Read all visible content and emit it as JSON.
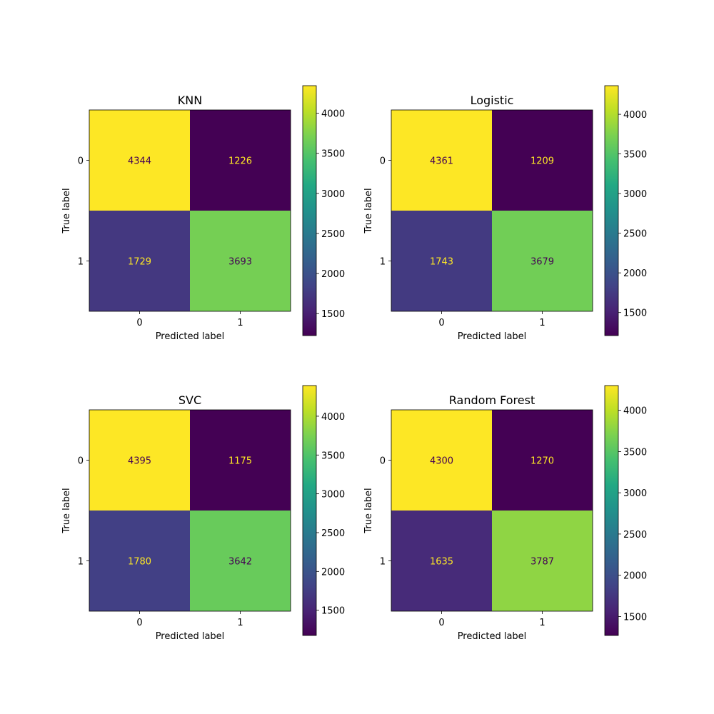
{
  "chart_data": [
    {
      "type": "heatmap",
      "title": "KNN",
      "xlabel": "Predicted label",
      "ylabel": "True label",
      "x_categories": [
        "0",
        "1"
      ],
      "y_categories": [
        "0",
        "1"
      ],
      "matrix": [
        [
          4344,
          1226
        ],
        [
          1729,
          3693
        ]
      ],
      "colormap": "viridis",
      "colorbar": {
        "range": [
          1226,
          4344
        ],
        "ticks": [
          1500,
          2000,
          2500,
          3000,
          3500,
          4000
        ]
      }
    },
    {
      "type": "heatmap",
      "title": "Logistic",
      "xlabel": "Predicted label",
      "ylabel": "True label",
      "x_categories": [
        "0",
        "1"
      ],
      "y_categories": [
        "0",
        "1"
      ],
      "matrix": [
        [
          4361,
          1209
        ],
        [
          1743,
          3679
        ]
      ],
      "colormap": "viridis",
      "colorbar": {
        "range": [
          1209,
          4361
        ],
        "ticks": [
          1500,
          2000,
          2500,
          3000,
          3500,
          4000
        ]
      }
    },
    {
      "type": "heatmap",
      "title": "SVC",
      "xlabel": "Predicted label",
      "ylabel": "True label",
      "x_categories": [
        "0",
        "1"
      ],
      "y_categories": [
        "0",
        "1"
      ],
      "matrix": [
        [
          4395,
          1175
        ],
        [
          1780,
          3642
        ]
      ],
      "colormap": "viridis",
      "colorbar": {
        "range": [
          1175,
          4395
        ],
        "ticks": [
          1500,
          2000,
          2500,
          3000,
          3500,
          4000
        ]
      }
    },
    {
      "type": "heatmap",
      "title": "Random Forest",
      "xlabel": "Predicted label",
      "ylabel": "True label",
      "x_categories": [
        "0",
        "1"
      ],
      "y_categories": [
        "0",
        "1"
      ],
      "matrix": [
        [
          4300,
          1270
        ],
        [
          1635,
          3787
        ]
      ],
      "colormap": "viridis",
      "colorbar": {
        "range": [
          1270,
          4300
        ],
        "ticks": [
          1500,
          2000,
          2500,
          3000,
          3500,
          4000
        ]
      }
    }
  ],
  "colors": {
    "text_on_dark": "#fde725",
    "text_on_light": "#440154"
  }
}
